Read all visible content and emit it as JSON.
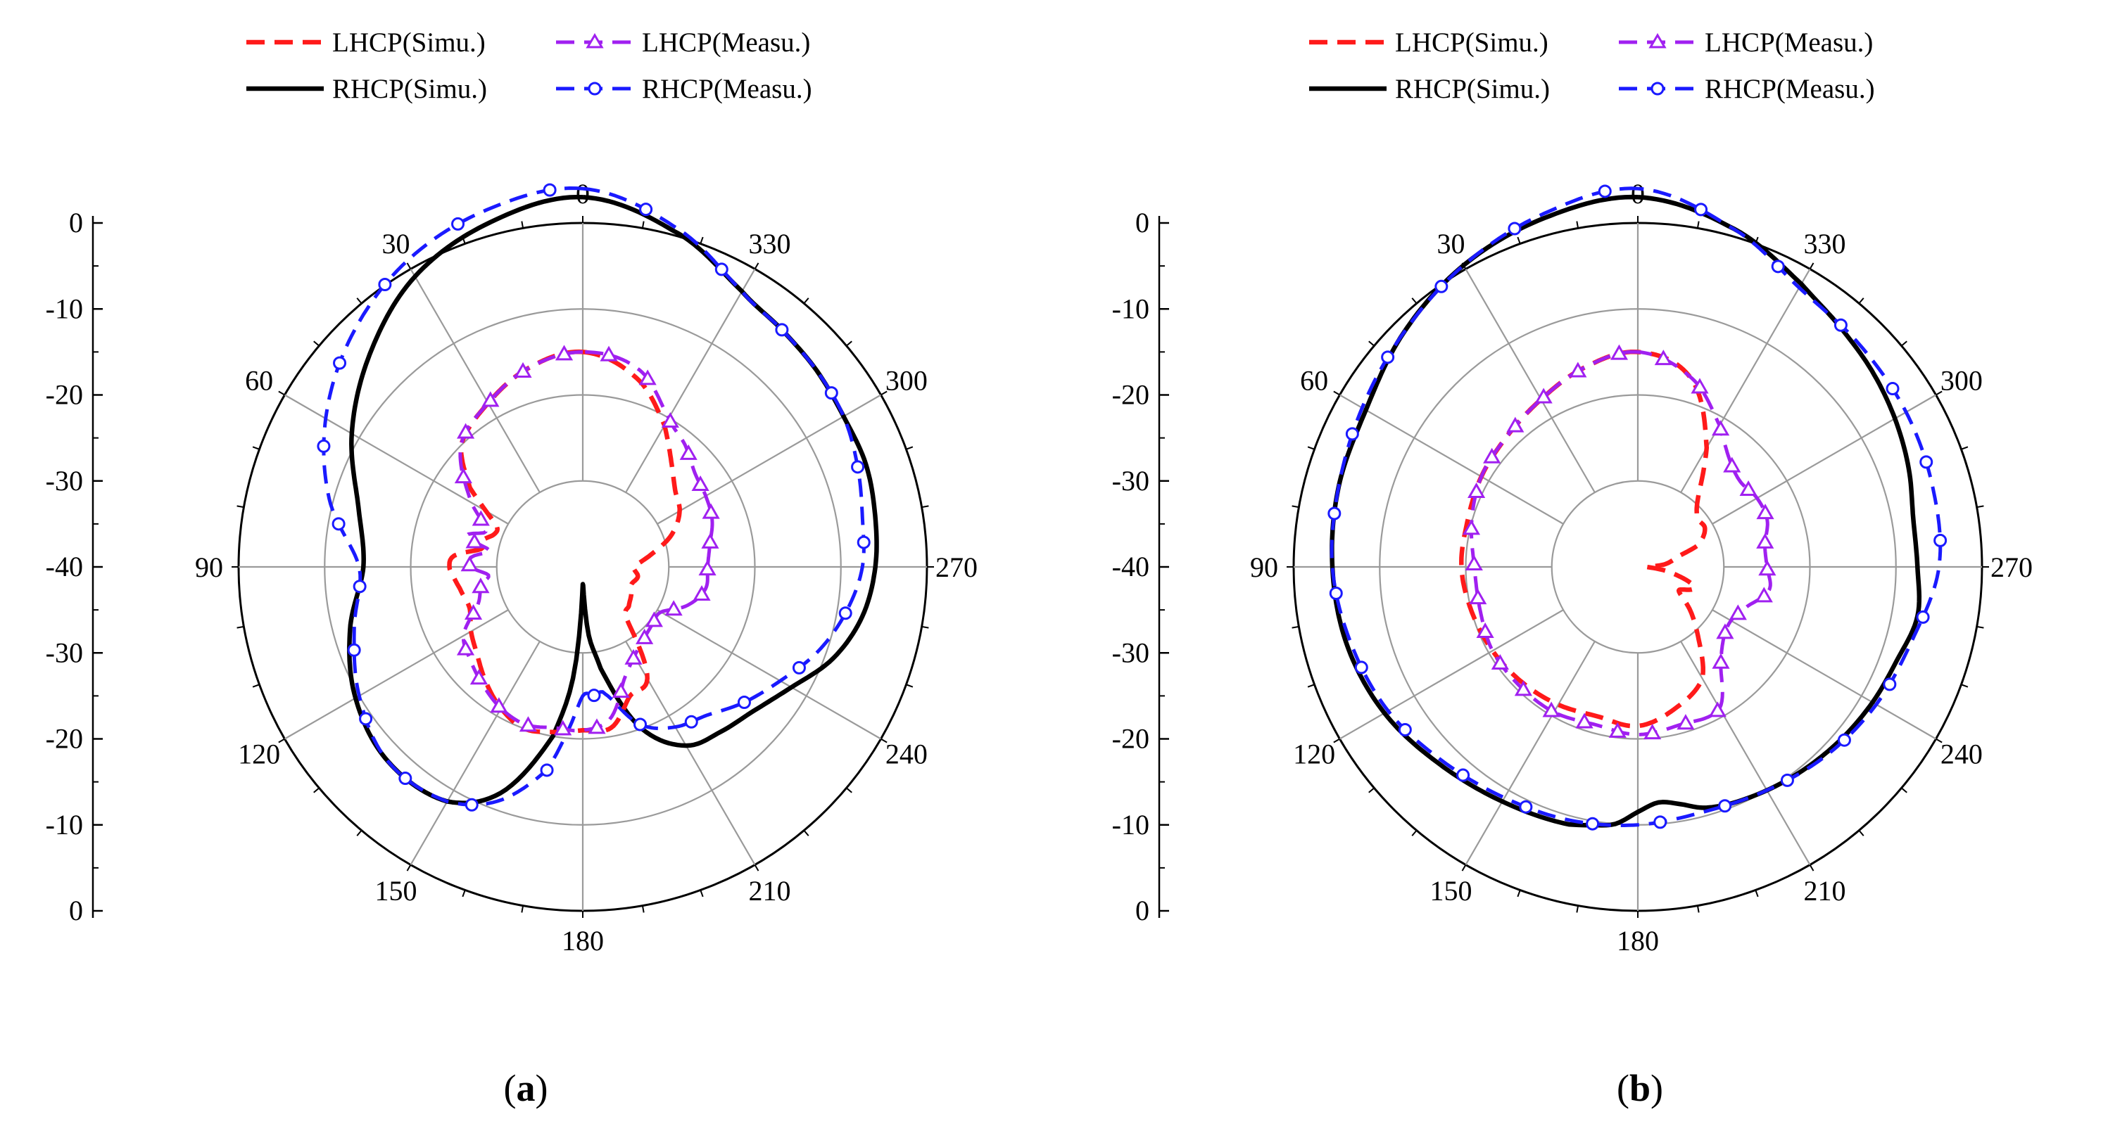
{
  "figure": {
    "panels": [
      "a",
      "b"
    ],
    "caption_a": "a",
    "caption_b": "b"
  },
  "colors": {
    "lhcp_simu": "#ff1a1a",
    "lhcp_meas": "#a020f0",
    "rhcp_simu": "#000000",
    "rhcp_meas": "#1a1aff",
    "grid": "#9a9a9a"
  },
  "chart_data": [
    {
      "type": "polar-line",
      "panel": "a",
      "caption": "(a)",
      "angle_labels": [
        "0",
        "30",
        "60",
        "90",
        "120",
        "150",
        "180",
        "210",
        "240",
        "270",
        "300",
        "330"
      ],
      "angle_direction": "counter-clockwise, 0 at top",
      "radial_range_dB": [
        -40,
        0
      ],
      "radial_tick_labels": [
        "0",
        "-10",
        "-20",
        "-30",
        "-40",
        "-30",
        "-20",
        "-10",
        "0"
      ],
      "legend": [
        {
          "name": "LHCP(Simu.)",
          "style": "red dashed"
        },
        {
          "name": "LHCP(Measu.)",
          "style": "purple dashed, triangle markers"
        },
        {
          "name": "RHCP(Simu.)",
          "style": "black solid"
        },
        {
          "name": "RHCP(Measu.)",
          "style": "blue dashed, circle markers"
        }
      ],
      "series": [
        {
          "name": "RHCP(Simu.)",
          "angles": [
            0,
            15,
            30,
            45,
            60,
            75,
            90,
            105,
            120,
            135,
            150,
            160,
            170,
            175,
            180,
            185,
            190,
            200,
            210,
            220,
            230,
            240,
            250,
            260,
            270,
            280,
            290,
            300,
            310,
            320,
            330,
            345,
            360
          ],
          "values": [
            3,
            1.5,
            -1,
            -5,
            -9,
            -13,
            -14.5,
            -12,
            -9.5,
            -8,
            -8.5,
            -12,
            -20,
            -27,
            -38,
            -32,
            -28,
            -20,
            -16,
            -15,
            -14,
            -12,
            -9,
            -7,
            -6,
            -5.5,
            -5,
            -5,
            -4.5,
            -4,
            -3,
            0.5,
            3
          ]
        },
        {
          "name": "RHCP(Measu.)",
          "angles": [
            0,
            15,
            30,
            45,
            60,
            75,
            90,
            105,
            120,
            135,
            150,
            160,
            170,
            175,
            180,
            185,
            190,
            200,
            210,
            220,
            230,
            240,
            250,
            260,
            270,
            280,
            290,
            300,
            310,
            320,
            330,
            345,
            360
          ],
          "values": [
            4,
            3,
            1,
            -2,
            -5.5,
            -9.5,
            -14,
            -12.5,
            -10,
            -8,
            -8.5,
            -11,
            -16,
            -21,
            -25,
            -25,
            -25,
            -20.5,
            -18.5,
            -17.5,
            -15.5,
            -13.5,
            -11,
            -9,
            -7.5,
            -7,
            -6,
            -5,
            -4.5,
            -4,
            -3,
            1,
            4
          ]
        },
        {
          "name": "LHCP(Simu.)",
          "angles": [
            0,
            15,
            30,
            45,
            55,
            60,
            65,
            70,
            75,
            80,
            85,
            90,
            95,
            100,
            110,
            120,
            130,
            140,
            150,
            160,
            170,
            180,
            190,
            200,
            210,
            220,
            230,
            240,
            250,
            260,
            270,
            280,
            290,
            300,
            310,
            320,
            330,
            345,
            360
          ],
          "values": [
            -15,
            -16,
            -18,
            -20,
            -24,
            -27,
            -29,
            -29,
            -28,
            -28,
            -25,
            -24.5,
            -25,
            -25.5,
            -26,
            -25,
            -24,
            -22.5,
            -21,
            -20,
            -20.5,
            -21,
            -21,
            -24,
            -25,
            -32,
            -33,
            -33.5,
            -34,
            -33.5,
            -34,
            -32,
            -29,
            -27,
            -26,
            -24,
            -21,
            -17,
            -15
          ]
        },
        {
          "name": "LHCP(Measu.)",
          "angles": [
            0,
            15,
            30,
            45,
            60,
            70,
            75,
            80,
            85,
            90,
            95,
            100,
            110,
            120,
            130,
            140,
            150,
            160,
            170,
            180,
            190,
            200,
            210,
            220,
            230,
            240,
            250,
            260,
            270,
            280,
            290,
            300,
            310,
            320,
            330,
            345,
            360
          ],
          "values": [
            -15,
            -16,
            -18,
            -20,
            -25,
            -28,
            -26,
            -29,
            -27,
            -27,
            -29,
            -28,
            -27,
            -24,
            -23,
            -22,
            -21,
            -20.5,
            -21,
            -21,
            -22,
            -26,
            -28,
            -29,
            -29.5,
            -29.5,
            -27,
            -25.5,
            -25.5,
            -25,
            -24,
            -23.5,
            -23,
            -21.5,
            -20,
            -16,
            -15
          ]
        }
      ]
    },
    {
      "type": "polar-line",
      "panel": "b",
      "caption": "(b)",
      "angle_labels": [
        "0",
        "30",
        "60",
        "90",
        "120",
        "150",
        "180",
        "210",
        "240",
        "270",
        "300",
        "330"
      ],
      "angle_direction": "counter-clockwise, 0 at top",
      "radial_range_dB": [
        -40,
        0
      ],
      "radial_tick_labels": [
        "0",
        "-10",
        "-20",
        "-30",
        "-40",
        "-30",
        "-20",
        "-10",
        "0"
      ],
      "legend": [
        {
          "name": "LHCP(Simu.)",
          "style": "red dashed"
        },
        {
          "name": "LHCP(Measu.)",
          "style": "purple dashed, triangle markers"
        },
        {
          "name": "RHCP(Simu.)",
          "style": "black solid"
        },
        {
          "name": "RHCP(Measu.)",
          "style": "blue dashed, circle markers"
        }
      ],
      "series": [
        {
          "name": "RHCP(Simu.)",
          "angles": [
            0,
            15,
            30,
            45,
            60,
            75,
            90,
            105,
            120,
            135,
            150,
            165,
            170,
            175,
            180,
            185,
            190,
            195,
            200,
            210,
            220,
            230,
            240,
            250,
            260,
            270,
            280,
            290,
            300,
            310,
            320,
            330,
            345,
            360
          ],
          "values": [
            3,
            2,
            0.5,
            -1.5,
            -3.5,
            -4,
            -4.5,
            -5,
            -6,
            -7.5,
            -8.5,
            -9,
            -9.5,
            -10,
            -11.5,
            -12.5,
            -12,
            -11,
            -10.5,
            -10,
            -9.5,
            -9,
            -8.5,
            -8,
            -7,
            -7.5,
            -7.5,
            -6.5,
            -5.5,
            -4.5,
            -3.5,
            -2,
            1,
            3
          ]
        },
        {
          "name": "RHCP(Measu.)",
          "angles": [
            0,
            15,
            30,
            45,
            60,
            75,
            90,
            105,
            120,
            135,
            150,
            165,
            180,
            195,
            210,
            225,
            240,
            255,
            270,
            285,
            300,
            315,
            330,
            345,
            360
          ],
          "values": [
            4,
            2.5,
            0.5,
            -1.5,
            -3,
            -4,
            -4.5,
            -5.5,
            -6.5,
            -8,
            -9,
            -9.5,
            -10,
            -10.5,
            -10,
            -9,
            -8,
            -7,
            -5,
            -4.5,
            -4,
            -3.5,
            -2.5,
            1,
            4
          ]
        },
        {
          "name": "LHCP(Simu.)",
          "angles": [
            0,
            15,
            30,
            45,
            60,
            75,
            90,
            105,
            120,
            135,
            150,
            165,
            180,
            195,
            210,
            220,
            230,
            240,
            250,
            260,
            270,
            275,
            280,
            285,
            290,
            300,
            310,
            320,
            330,
            345,
            360
          ],
          "values": [
            -15,
            -16,
            -17.5,
            -18.5,
            -19,
            -19.5,
            -19.5,
            -20,
            -20.5,
            -21,
            -21.5,
            -22,
            -21.5,
            -23,
            -25,
            -29,
            -32,
            -34.5,
            -33,
            -36,
            -39,
            -37,
            -36,
            -35,
            -32.5,
            -31,
            -31,
            -29,
            -24,
            -17,
            -15
          ]
        },
        {
          "name": "LHCP(Measu.)",
          "angles": [
            0,
            15,
            30,
            45,
            60,
            75,
            90,
            105,
            120,
            135,
            150,
            165,
            180,
            195,
            210,
            220,
            230,
            240,
            250,
            260,
            270,
            280,
            290,
            300,
            310,
            320,
            330,
            345,
            360
          ],
          "values": [
            -15,
            -16,
            -17.5,
            -18.5,
            -19,
            -20,
            -21,
            -21,
            -20.5,
            -20.5,
            -20.5,
            -21,
            -20.5,
            -21,
            -21,
            -25,
            -27,
            -27.5,
            -26.5,
            -24.5,
            -25,
            -25,
            -24,
            -24,
            -24.5,
            -23.5,
            -21,
            -17,
            -15
          ]
        }
      ]
    }
  ]
}
